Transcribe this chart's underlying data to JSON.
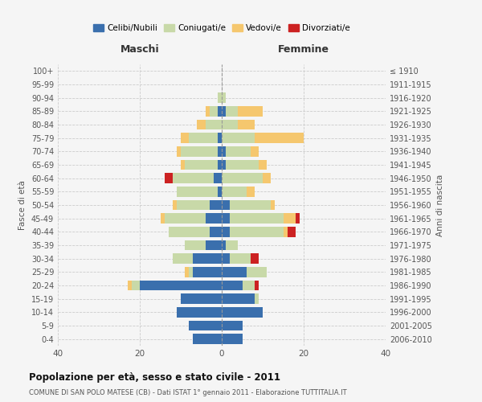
{
  "age_groups": [
    "0-4",
    "5-9",
    "10-14",
    "15-19",
    "20-24",
    "25-29",
    "30-34",
    "35-39",
    "40-44",
    "45-49",
    "50-54",
    "55-59",
    "60-64",
    "65-69",
    "70-74",
    "75-79",
    "80-84",
    "85-89",
    "90-94",
    "95-99",
    "100+"
  ],
  "birth_years": [
    "2006-2010",
    "2001-2005",
    "1996-2000",
    "1991-1995",
    "1986-1990",
    "1981-1985",
    "1976-1980",
    "1971-1975",
    "1966-1970",
    "1961-1965",
    "1956-1960",
    "1951-1955",
    "1946-1950",
    "1941-1945",
    "1936-1940",
    "1931-1935",
    "1926-1930",
    "1921-1925",
    "1916-1920",
    "1911-1915",
    "≤ 1910"
  ],
  "maschi": {
    "celibi": [
      7,
      8,
      11,
      10,
      20,
      7,
      7,
      4,
      3,
      4,
      3,
      1,
      2,
      1,
      1,
      1,
      0,
      1,
      0,
      0,
      0
    ],
    "coniugati": [
      0,
      0,
      0,
      0,
      2,
      1,
      5,
      5,
      10,
      10,
      8,
      10,
      10,
      8,
      9,
      7,
      4,
      2,
      1,
      0,
      0
    ],
    "vedovi": [
      0,
      0,
      0,
      0,
      1,
      1,
      0,
      0,
      0,
      1,
      1,
      0,
      0,
      1,
      1,
      2,
      2,
      1,
      0,
      0,
      0
    ],
    "divorziati": [
      0,
      0,
      0,
      0,
      0,
      0,
      0,
      0,
      0,
      0,
      0,
      0,
      2,
      0,
      0,
      0,
      0,
      0,
      0,
      0,
      0
    ]
  },
  "femmine": {
    "nubili": [
      5,
      5,
      10,
      8,
      5,
      6,
      2,
      1,
      2,
      2,
      2,
      0,
      0,
      1,
      1,
      0,
      0,
      1,
      0,
      0,
      0
    ],
    "coniugate": [
      0,
      0,
      0,
      1,
      3,
      5,
      5,
      3,
      13,
      13,
      10,
      6,
      10,
      8,
      6,
      8,
      4,
      3,
      1,
      0,
      0
    ],
    "vedove": [
      0,
      0,
      0,
      0,
      0,
      0,
      0,
      0,
      1,
      3,
      1,
      2,
      2,
      2,
      2,
      12,
      4,
      6,
      0,
      0,
      0
    ],
    "divorziate": [
      0,
      0,
      0,
      0,
      1,
      0,
      2,
      0,
      2,
      1,
      0,
      0,
      0,
      0,
      0,
      0,
      0,
      0,
      0,
      0,
      0
    ]
  },
  "colors": {
    "celibi_nubili": "#3a6fad",
    "coniugati": "#c8d9a8",
    "vedovi": "#f5c76e",
    "divorziati": "#cc2222"
  },
  "xlim": 40,
  "title": "Popolazione per età, sesso e stato civile - 2011",
  "subtitle": "COMUNE DI SAN POLO MATESE (CB) - Dati ISTAT 1° gennaio 2011 - Elaborazione TUTTITALIA.IT",
  "ylabel_left": "Fasce di età",
  "ylabel_right": "Anni di nascita",
  "xlabel_maschi": "Maschi",
  "xlabel_femmine": "Femmine",
  "legend_labels": [
    "Celibi/Nubili",
    "Coniugati/e",
    "Vedovi/e",
    "Divorziati/e"
  ],
  "bg_color": "#f5f5f5",
  "grid_color": "#cccccc"
}
